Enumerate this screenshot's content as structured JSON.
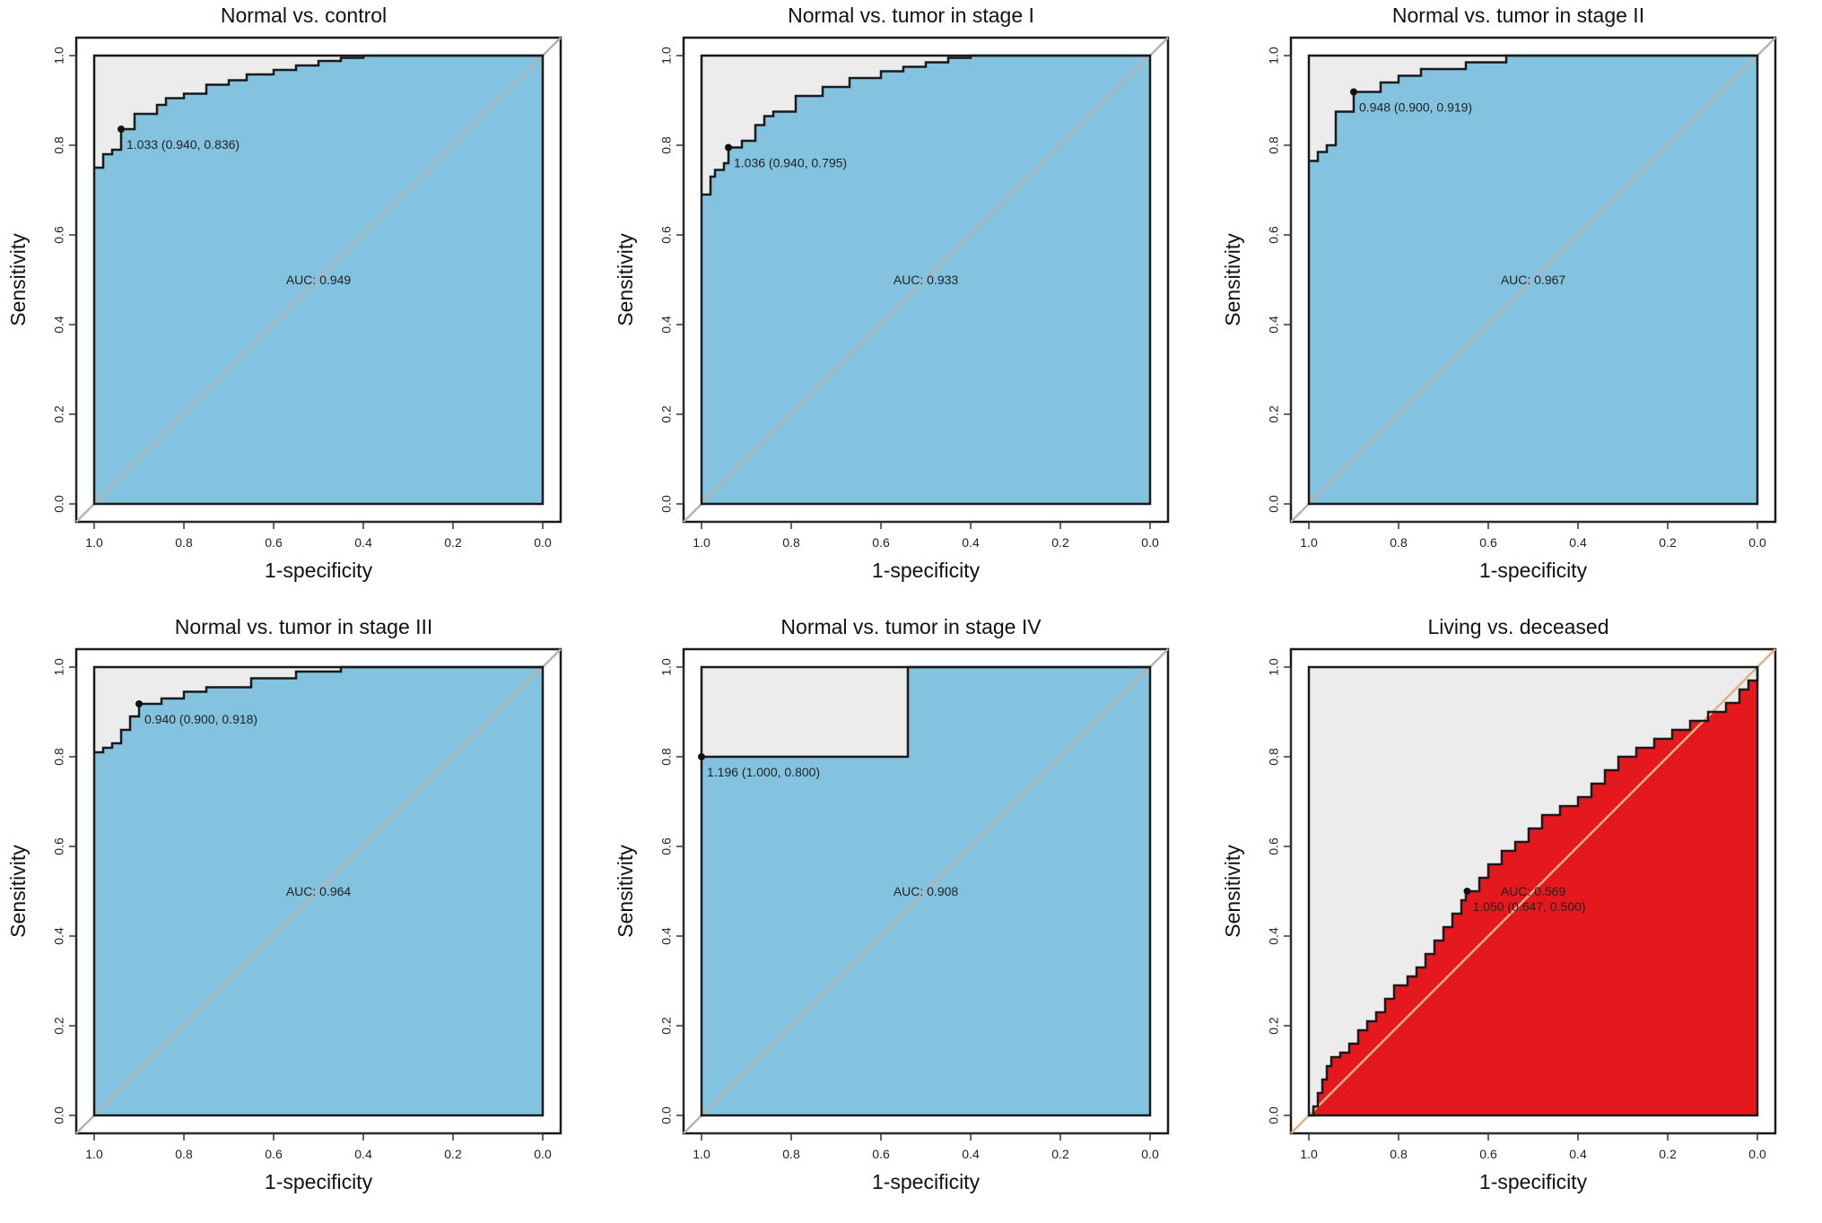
{
  "colors": {
    "blue_fill": "#83c3e0",
    "red_fill": "#e5181d",
    "upper_fill": "#ececec",
    "border": "#1a1a1a",
    "diagonal": "#b4b4b4",
    "diagonal_red": "#d9b38c"
  },
  "chart_data": [
    {
      "type": "area",
      "title": "Normal vs. control",
      "xlabel": "1-specificity",
      "ylabel": "Sensitivity",
      "x_reversed": true,
      "xlim": [
        1.0,
        0.0
      ],
      "ylim": [
        0.0,
        1.0
      ],
      "xticks": [
        "1.0",
        "0.8",
        "0.6",
        "0.4",
        "0.2",
        "0.0"
      ],
      "yticks": [
        "0.0",
        "0.2",
        "0.4",
        "0.6",
        "0.8",
        "1.0"
      ],
      "auc_label": "AUC: 0.949",
      "threshold_label": "1.033 (0.940, 0.836)",
      "threshold_point": [
        0.94,
        0.836
      ],
      "fill_color": "blue",
      "curve": [
        [
          1.0,
          0.75
        ],
        [
          0.98,
          0.75
        ],
        [
          0.98,
          0.78
        ],
        [
          0.96,
          0.78
        ],
        [
          0.96,
          0.79
        ],
        [
          0.94,
          0.79
        ],
        [
          0.94,
          0.836
        ],
        [
          0.91,
          0.836
        ],
        [
          0.91,
          0.87
        ],
        [
          0.86,
          0.87
        ],
        [
          0.86,
          0.89
        ],
        [
          0.84,
          0.89
        ],
        [
          0.84,
          0.905
        ],
        [
          0.8,
          0.905
        ],
        [
          0.8,
          0.915
        ],
        [
          0.75,
          0.915
        ],
        [
          0.75,
          0.935
        ],
        [
          0.7,
          0.935
        ],
        [
          0.7,
          0.945
        ],
        [
          0.66,
          0.945
        ],
        [
          0.66,
          0.958
        ],
        [
          0.6,
          0.958
        ],
        [
          0.6,
          0.968
        ],
        [
          0.55,
          0.968
        ],
        [
          0.55,
          0.978
        ],
        [
          0.5,
          0.978
        ],
        [
          0.5,
          0.988
        ],
        [
          0.45,
          0.988
        ],
        [
          0.45,
          0.995
        ],
        [
          0.4,
          0.995
        ],
        [
          0.4,
          1.0
        ],
        [
          0.0,
          1.0
        ]
      ]
    },
    {
      "type": "area",
      "title": "Normal vs. tumor in stage I",
      "xlabel": "1-specificity",
      "ylabel": "Sensitivity",
      "x_reversed": true,
      "xlim": [
        1.0,
        0.0
      ],
      "ylim": [
        0.0,
        1.0
      ],
      "xticks": [
        "1.0",
        "0.8",
        "0.6",
        "0.4",
        "0.2",
        "0.0"
      ],
      "yticks": [
        "0.0",
        "0.2",
        "0.4",
        "0.6",
        "0.8",
        "1.0"
      ],
      "auc_label": "AUC: 0.933",
      "threshold_label": "1.036 (0.940, 0.795)",
      "threshold_point": [
        0.94,
        0.795
      ],
      "fill_color": "blue",
      "curve": [
        [
          1.0,
          0.69
        ],
        [
          0.98,
          0.69
        ],
        [
          0.98,
          0.73
        ],
        [
          0.97,
          0.73
        ],
        [
          0.97,
          0.745
        ],
        [
          0.95,
          0.745
        ],
        [
          0.95,
          0.76
        ],
        [
          0.94,
          0.76
        ],
        [
          0.94,
          0.795
        ],
        [
          0.91,
          0.795
        ],
        [
          0.91,
          0.81
        ],
        [
          0.88,
          0.81
        ],
        [
          0.88,
          0.845
        ],
        [
          0.86,
          0.845
        ],
        [
          0.86,
          0.865
        ],
        [
          0.84,
          0.865
        ],
        [
          0.84,
          0.875
        ],
        [
          0.79,
          0.875
        ],
        [
          0.79,
          0.91
        ],
        [
          0.73,
          0.91
        ],
        [
          0.73,
          0.93
        ],
        [
          0.67,
          0.93
        ],
        [
          0.67,
          0.95
        ],
        [
          0.6,
          0.95
        ],
        [
          0.6,
          0.965
        ],
        [
          0.55,
          0.965
        ],
        [
          0.55,
          0.975
        ],
        [
          0.5,
          0.975
        ],
        [
          0.5,
          0.985
        ],
        [
          0.45,
          0.985
        ],
        [
          0.45,
          0.995
        ],
        [
          0.4,
          0.995
        ],
        [
          0.4,
          1.0
        ],
        [
          0.0,
          1.0
        ]
      ]
    },
    {
      "type": "area",
      "title": "Normal vs. tumor in stage II",
      "xlabel": "1-specificity",
      "ylabel": "Sensitivity",
      "x_reversed": true,
      "xlim": [
        1.0,
        0.0
      ],
      "ylim": [
        0.0,
        1.0
      ],
      "xticks": [
        "1.0",
        "0.8",
        "0.6",
        "0.4",
        "0.2",
        "0.0"
      ],
      "yticks": [
        "0.0",
        "0.2",
        "0.4",
        "0.6",
        "0.8",
        "1.0"
      ],
      "auc_label": "AUC: 0.967",
      "threshold_label": "0.948 (0.900, 0.919)",
      "threshold_point": [
        0.9,
        0.919
      ],
      "fill_color": "blue",
      "curve": [
        [
          1.0,
          0.765
        ],
        [
          0.98,
          0.765
        ],
        [
          0.98,
          0.785
        ],
        [
          0.96,
          0.785
        ],
        [
          0.96,
          0.8
        ],
        [
          0.94,
          0.8
        ],
        [
          0.94,
          0.875
        ],
        [
          0.9,
          0.875
        ],
        [
          0.9,
          0.919
        ],
        [
          0.84,
          0.919
        ],
        [
          0.84,
          0.94
        ],
        [
          0.8,
          0.94
        ],
        [
          0.8,
          0.955
        ],
        [
          0.75,
          0.955
        ],
        [
          0.75,
          0.97
        ],
        [
          0.65,
          0.97
        ],
        [
          0.65,
          0.985
        ],
        [
          0.56,
          0.985
        ],
        [
          0.56,
          1.0
        ],
        [
          0.0,
          1.0
        ]
      ]
    },
    {
      "type": "area",
      "title": "Normal vs. tumor in stage III",
      "xlabel": "1-specificity",
      "ylabel": "Sensitivity",
      "x_reversed": true,
      "xlim": [
        1.0,
        0.0
      ],
      "ylim": [
        0.0,
        1.0
      ],
      "xticks": [
        "1.0",
        "0.8",
        "0.6",
        "0.4",
        "0.2",
        "0.0"
      ],
      "yticks": [
        "0.0",
        "0.2",
        "0.4",
        "0.6",
        "0.8",
        "1.0"
      ],
      "auc_label": "AUC: 0.964",
      "threshold_label": "0.940 (0.900, 0.918)",
      "threshold_point": [
        0.9,
        0.918
      ],
      "fill_color": "blue",
      "curve": [
        [
          1.0,
          0.81
        ],
        [
          0.98,
          0.81
        ],
        [
          0.98,
          0.82
        ],
        [
          0.96,
          0.82
        ],
        [
          0.96,
          0.83
        ],
        [
          0.94,
          0.83
        ],
        [
          0.94,
          0.86
        ],
        [
          0.92,
          0.86
        ],
        [
          0.92,
          0.89
        ],
        [
          0.9,
          0.89
        ],
        [
          0.9,
          0.918
        ],
        [
          0.85,
          0.918
        ],
        [
          0.85,
          0.93
        ],
        [
          0.8,
          0.93
        ],
        [
          0.8,
          0.945
        ],
        [
          0.75,
          0.945
        ],
        [
          0.75,
          0.955
        ],
        [
          0.65,
          0.955
        ],
        [
          0.65,
          0.975
        ],
        [
          0.55,
          0.975
        ],
        [
          0.55,
          0.99
        ],
        [
          0.45,
          0.99
        ],
        [
          0.45,
          1.0
        ],
        [
          0.0,
          1.0
        ]
      ]
    },
    {
      "type": "area",
      "title": "Normal vs. tumor in stage IV",
      "xlabel": "1-specificity",
      "ylabel": "Sensitivity",
      "x_reversed": true,
      "xlim": [
        1.0,
        0.0
      ],
      "ylim": [
        0.0,
        1.0
      ],
      "xticks": [
        "1.0",
        "0.8",
        "0.6",
        "0.4",
        "0.2",
        "0.0"
      ],
      "yticks": [
        "0.0",
        "0.2",
        "0.4",
        "0.6",
        "0.8",
        "1.0"
      ],
      "auc_label": "AUC: 0.908",
      "threshold_label": "1.196 (1.000, 0.800)",
      "threshold_point": [
        1.0,
        0.8
      ],
      "fill_color": "blue",
      "curve": [
        [
          1.0,
          0.8
        ],
        [
          0.54,
          0.8
        ],
        [
          0.54,
          1.0
        ],
        [
          0.0,
          1.0
        ]
      ]
    },
    {
      "type": "area",
      "title": "Living vs. deceased",
      "xlabel": "1-specificity",
      "ylabel": "Sensitivity",
      "x_reversed": true,
      "xlim": [
        1.0,
        0.0
      ],
      "ylim": [
        0.0,
        1.0
      ],
      "xticks": [
        "1.0",
        "0.8",
        "0.6",
        "0.4",
        "0.2",
        "0.0"
      ],
      "yticks": [
        "0.0",
        "0.2",
        "0.4",
        "0.6",
        "0.8",
        "1.0"
      ],
      "auc_label": "AUC: 0.569",
      "threshold_label": "1.050 (0.647, 0.500)",
      "threshold_point": [
        0.647,
        0.5
      ],
      "fill_color": "red",
      "curve": [
        [
          1.0,
          0.0
        ],
        [
          0.99,
          0.0
        ],
        [
          0.99,
          0.02
        ],
        [
          0.98,
          0.02
        ],
        [
          0.98,
          0.05
        ],
        [
          0.97,
          0.05
        ],
        [
          0.97,
          0.08
        ],
        [
          0.96,
          0.08
        ],
        [
          0.96,
          0.11
        ],
        [
          0.95,
          0.11
        ],
        [
          0.95,
          0.13
        ],
        [
          0.93,
          0.13
        ],
        [
          0.93,
          0.14
        ],
        [
          0.91,
          0.14
        ],
        [
          0.91,
          0.16
        ],
        [
          0.89,
          0.16
        ],
        [
          0.89,
          0.19
        ],
        [
          0.87,
          0.19
        ],
        [
          0.87,
          0.21
        ],
        [
          0.85,
          0.21
        ],
        [
          0.85,
          0.23
        ],
        [
          0.83,
          0.23
        ],
        [
          0.83,
          0.26
        ],
        [
          0.81,
          0.26
        ],
        [
          0.81,
          0.29
        ],
        [
          0.78,
          0.29
        ],
        [
          0.78,
          0.31
        ],
        [
          0.76,
          0.31
        ],
        [
          0.76,
          0.33
        ],
        [
          0.74,
          0.33
        ],
        [
          0.74,
          0.36
        ],
        [
          0.72,
          0.36
        ],
        [
          0.72,
          0.39
        ],
        [
          0.7,
          0.39
        ],
        [
          0.7,
          0.42
        ],
        [
          0.68,
          0.42
        ],
        [
          0.68,
          0.45
        ],
        [
          0.66,
          0.45
        ],
        [
          0.66,
          0.48
        ],
        [
          0.65,
          0.48
        ],
        [
          0.65,
          0.5
        ],
        [
          0.62,
          0.5
        ],
        [
          0.62,
          0.53
        ],
        [
          0.6,
          0.53
        ],
        [
          0.6,
          0.56
        ],
        [
          0.57,
          0.56
        ],
        [
          0.57,
          0.59
        ],
        [
          0.54,
          0.59
        ],
        [
          0.54,
          0.61
        ],
        [
          0.51,
          0.61
        ],
        [
          0.51,
          0.64
        ],
        [
          0.48,
          0.64
        ],
        [
          0.48,
          0.67
        ],
        [
          0.44,
          0.67
        ],
        [
          0.44,
          0.69
        ],
        [
          0.4,
          0.69
        ],
        [
          0.4,
          0.71
        ],
        [
          0.37,
          0.71
        ],
        [
          0.37,
          0.74
        ],
        [
          0.34,
          0.74
        ],
        [
          0.34,
          0.77
        ],
        [
          0.31,
          0.77
        ],
        [
          0.31,
          0.8
        ],
        [
          0.27,
          0.8
        ],
        [
          0.27,
          0.82
        ],
        [
          0.23,
          0.82
        ],
        [
          0.23,
          0.84
        ],
        [
          0.19,
          0.84
        ],
        [
          0.19,
          0.86
        ],
        [
          0.15,
          0.86
        ],
        [
          0.15,
          0.88
        ],
        [
          0.11,
          0.88
        ],
        [
          0.11,
          0.9
        ],
        [
          0.07,
          0.9
        ],
        [
          0.07,
          0.92
        ],
        [
          0.04,
          0.92
        ],
        [
          0.04,
          0.95
        ],
        [
          0.02,
          0.95
        ],
        [
          0.02,
          0.97
        ],
        [
          0.0,
          0.97
        ],
        [
          0.0,
          1.0
        ]
      ]
    }
  ]
}
